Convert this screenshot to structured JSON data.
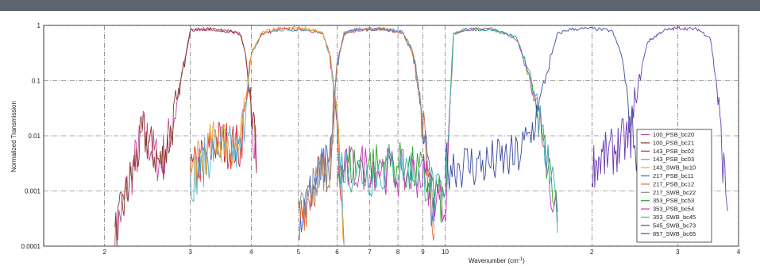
{
  "chart_data": {
    "type": "line",
    "title": "",
    "xlabel": "Wavenumber (cm",
    "xlabel_sup": "-1",
    "xlabel_close": ")",
    "ylabel": "Normalized Transmission",
    "yscale": "log",
    "xscale": "log",
    "xlim": [
      15,
      400
    ],
    "ylim": [
      0.0001,
      1
    ],
    "y_ticks": [
      {
        "value": 1,
        "label": "1"
      },
      {
        "value": 0.1,
        "label": "0.1"
      },
      {
        "value": 0.01,
        "label": "0.01"
      },
      {
        "value": 0.001,
        "label": "0.001"
      },
      {
        "value": 0.0001,
        "label": "0.0001"
      }
    ],
    "x_ticks": [
      {
        "value": 20,
        "label": "2"
      },
      {
        "value": 30,
        "label": "3"
      },
      {
        "value": 40,
        "label": "4"
      },
      {
        "value": 50,
        "label": "5"
      },
      {
        "value": 60,
        "label": "6"
      },
      {
        "value": 70,
        "label": "7"
      },
      {
        "value": 80,
        "label": "8"
      },
      {
        "value": 90,
        "label": "9"
      },
      {
        "value": 100,
        "label": "10"
      },
      {
        "value": 200,
        "label": "2"
      },
      {
        "value": 300,
        "label": "3"
      },
      {
        "value": 400,
        "label": "4"
      }
    ],
    "grid": true,
    "legend_position": "bottom-right",
    "series": [
      {
        "name": "100_PSB_bc20",
        "color": "#c04a9a",
        "band": "100",
        "x": [
          21,
          24,
          26,
          27,
          28,
          30,
          33,
          36,
          38,
          39,
          40,
          41
        ],
        "y": [
          0.00015,
          0.012,
          0.003,
          0.008,
          0.03,
          0.85,
          0.85,
          0.8,
          0.7,
          0.3,
          0.02,
          0.005
        ]
      },
      {
        "name": "100_PSB_bc21",
        "color": "#8b3a2a",
        "band": "100",
        "x": [
          21,
          24,
          26,
          27,
          28,
          30,
          33,
          36,
          38,
          39,
          40,
          41
        ],
        "y": [
          0.00015,
          0.011,
          0.003,
          0.007,
          0.03,
          0.82,
          0.86,
          0.78,
          0.68,
          0.28,
          0.018,
          0.005
        ]
      },
      {
        "name": "143_PSB_bc02",
        "color": "#d62728",
        "band": "143",
        "x": [
          30,
          34,
          38,
          40,
          42,
          46,
          52,
          56,
          58,
          60,
          62
        ],
        "y": [
          0.002,
          0.008,
          0.006,
          0.3,
          0.7,
          0.85,
          0.85,
          0.7,
          0.3,
          0.02,
          0.0002
        ]
      },
      {
        "name": "143_PSB_bc03",
        "color": "#4ab0d9",
        "band": "143",
        "x": [
          30,
          34,
          38,
          40,
          42,
          46,
          52,
          56,
          58,
          60,
          62
        ],
        "y": [
          0.0015,
          0.007,
          0.005,
          0.28,
          0.72,
          0.83,
          0.84,
          0.72,
          0.28,
          0.018,
          0.0002
        ]
      },
      {
        "name": "143_SWB_bc10",
        "color": "#f0a030",
        "band": "143",
        "x": [
          30,
          34,
          38,
          40,
          42,
          46,
          52,
          56,
          58,
          60,
          62
        ],
        "y": [
          0.002,
          0.009,
          0.006,
          0.32,
          0.75,
          0.9,
          0.88,
          0.75,
          0.32,
          0.02,
          0.0002
        ]
      },
      {
        "name": "217_PSB_bc11",
        "color": "#3a5fd0",
        "band": "217",
        "x": [
          50,
          55,
          58,
          60,
          62,
          66,
          75,
          82,
          86,
          90,
          95
        ],
        "y": [
          0.0003,
          0.002,
          0.003,
          0.2,
          0.7,
          0.85,
          0.85,
          0.75,
          0.3,
          0.02,
          0.0002
        ]
      },
      {
        "name": "217_PSB_bc12",
        "color": "#e06a30",
        "band": "217",
        "x": [
          50,
          55,
          58,
          60,
          62,
          66,
          75,
          82,
          86,
          90,
          95
        ],
        "y": [
          0.0003,
          0.002,
          0.003,
          0.18,
          0.68,
          0.83,
          0.87,
          0.72,
          0.28,
          0.018,
          0.0002
        ]
      },
      {
        "name": "217_SWB_bc22",
        "color": "#8a8a8a",
        "band": "217",
        "x": [
          50,
          55,
          58,
          60,
          62,
          66,
          75,
          82,
          86,
          90,
          95
        ],
        "y": [
          0.0003,
          0.002,
          0.003,
          0.22,
          0.72,
          0.87,
          0.86,
          0.76,
          0.32,
          0.02,
          0.0002
        ]
      },
      {
        "name": "353_PSB_bc53",
        "color": "#2ca02c",
        "band": "353",
        "x": [
          60,
          70,
          80,
          90,
          100,
          104,
          110,
          125,
          140,
          150,
          160,
          170
        ],
        "y": [
          0.003,
          0.003,
          0.003,
          0.002,
          0.0005,
          0.7,
          0.85,
          0.85,
          0.6,
          0.1,
          0.005,
          0.0004
        ]
      },
      {
        "name": "353_PSB_bc54",
        "color": "#c03ab0",
        "band": "353",
        "x": [
          60,
          70,
          80,
          90,
          100,
          104,
          110,
          125,
          140,
          150,
          160,
          170
        ],
        "y": [
          0.002,
          0.003,
          0.002,
          0.002,
          0.0005,
          0.68,
          0.83,
          0.86,
          0.58,
          0.09,
          0.005,
          0.0004
        ]
      },
      {
        "name": "353_SWB_bc45",
        "color": "#3ab0b0",
        "band": "353",
        "x": [
          60,
          70,
          80,
          90,
          100,
          104,
          110,
          125,
          140,
          150,
          160,
          170
        ],
        "y": [
          0.003,
          0.002,
          0.003,
          0.002,
          0.0005,
          0.72,
          0.86,
          0.84,
          0.62,
          0.11,
          0.005,
          0.0004
        ]
      },
      {
        "name": "545_SWB_bc73",
        "color": "#3a4aa0",
        "band": "545",
        "x": [
          100,
          120,
          140,
          150,
          160,
          170,
          180,
          200,
          220,
          230,
          240,
          250
        ],
        "y": [
          0.003,
          0.003,
          0.004,
          0.01,
          0.1,
          0.7,
          0.85,
          0.88,
          0.8,
          0.3,
          0.02,
          0.003
        ]
      },
      {
        "name": "857_SWB_bc65",
        "color": "#6a3ab0",
        "band": "857",
        "x": [
          200,
          220,
          240,
          250,
          260,
          280,
          300,
          330,
          350,
          360,
          370,
          380
        ],
        "y": [
          0.003,
          0.005,
          0.01,
          0.1,
          0.5,
          0.8,
          0.9,
          0.85,
          0.6,
          0.1,
          0.005,
          0.0005
        ]
      }
    ]
  }
}
